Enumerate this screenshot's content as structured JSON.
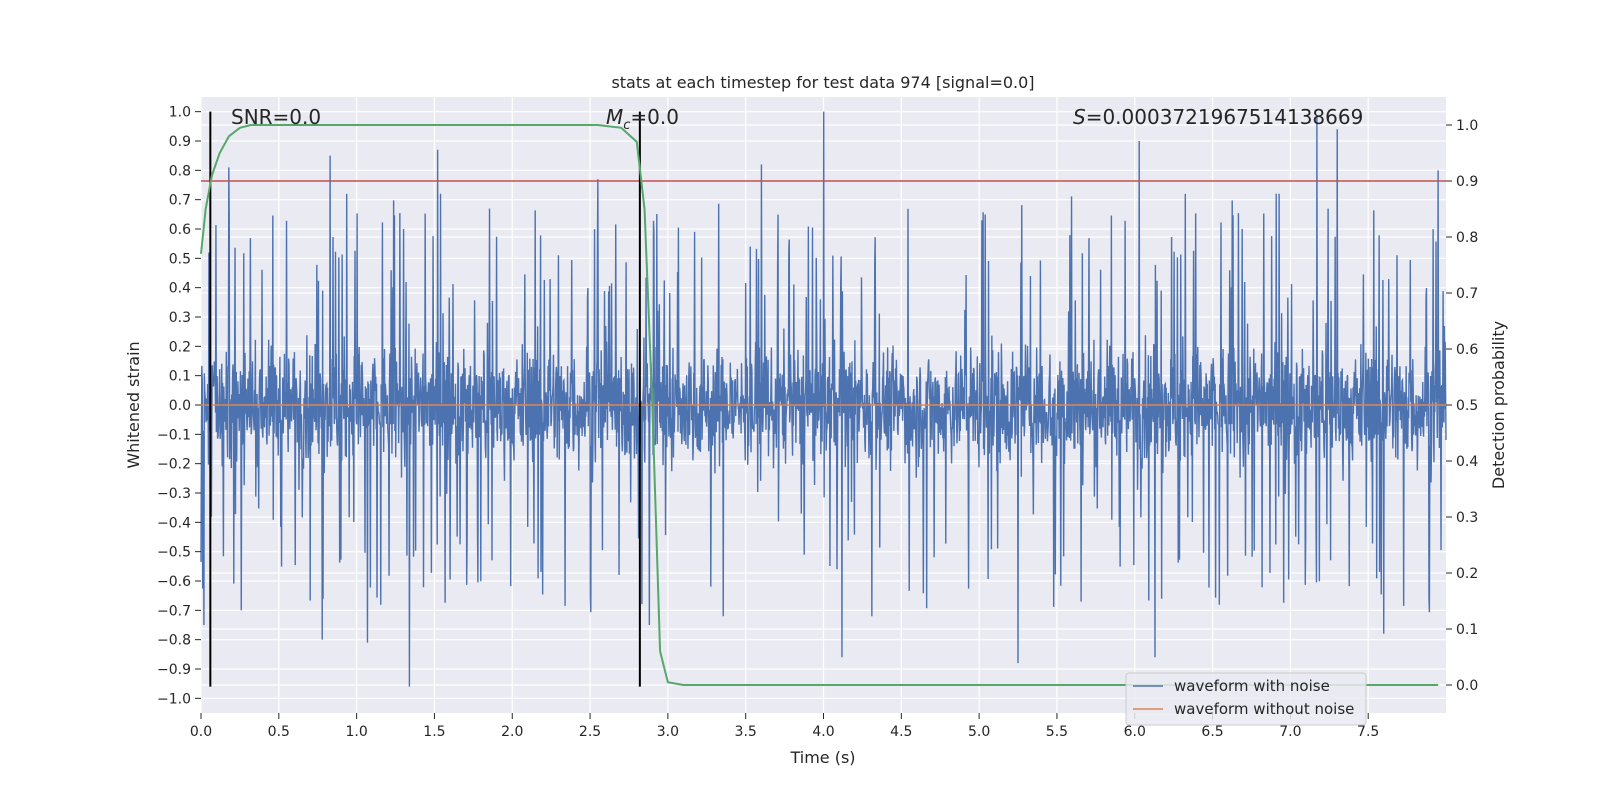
{
  "chart_data": {
    "type": "line",
    "title": "stats at each timestep for test data 974 [signal=0.0]",
    "xlabel": "Time (s)",
    "ylabel": "Whitened strain",
    "y2label": "Detection probability",
    "xlim": [
      0,
      8
    ],
    "ylim": [
      -1.05,
      1.05
    ],
    "y2lim": [
      -0.05,
      1.05
    ],
    "xticks": [
      0.0,
      0.5,
      1.0,
      1.5,
      2.0,
      2.5,
      3.0,
      3.5,
      4.0,
      4.5,
      5.0,
      5.5,
      6.0,
      6.5,
      7.0,
      7.5
    ],
    "xtick_labels": [
      "0.0",
      "0.5",
      "1.0",
      "1.5",
      "2.0",
      "2.5",
      "3.0",
      "3.5",
      "4.0",
      "4.5",
      "5.0",
      "5.5",
      "6.0",
      "6.5",
      "7.0",
      "7.5"
    ],
    "yticks": [
      -1.0,
      -0.9,
      -0.8,
      -0.7,
      -0.6,
      -0.5,
      -0.4,
      -0.3,
      -0.2,
      -0.1,
      0.0,
      0.1,
      0.2,
      0.3,
      0.4,
      0.5,
      0.6,
      0.7,
      0.8,
      0.9,
      1.0
    ],
    "ytick_labels": [
      "−1.0",
      "−0.9",
      "−0.8",
      "−0.7",
      "−0.6",
      "−0.5",
      "−0.4",
      "−0.3",
      "−0.2",
      "−0.1",
      "0.0",
      "0.1",
      "0.2",
      "0.3",
      "0.4",
      "0.5",
      "0.6",
      "0.7",
      "0.8",
      "0.9",
      "1.0"
    ],
    "y2ticks": [
      0.0,
      0.1,
      0.2,
      0.3,
      0.4,
      0.5,
      0.6,
      0.7,
      0.8,
      0.9,
      1.0
    ],
    "y2tick_labels": [
      "0.0",
      "0.1",
      "0.2",
      "0.3",
      "0.4",
      "0.5",
      "0.6",
      "0.7",
      "0.8",
      "0.9",
      "1.0"
    ],
    "series": [
      {
        "name": "waveform with noise",
        "color": "#4c72b0",
        "axis": "left",
        "description": "dense whitened-strain noise, roughly within ±0.25 with spikes to about ±1.0",
        "x_range": [
          0,
          8
        ],
        "peaks": [
          [
            0.05,
            0.52
          ],
          [
            0.18,
            0.81
          ],
          [
            0.83,
            0.85
          ],
          [
            1.52,
            0.87
          ],
          [
            2.55,
            0.77
          ],
          [
            3.6,
            0.82
          ],
          [
            4.0,
            1.0
          ],
          [
            6.03,
            0.9
          ],
          [
            7.17,
            0.98
          ],
          [
            7.3,
            0.94
          ],
          [
            7.95,
            0.8
          ]
        ],
        "troughs": [
          [
            0.02,
            -0.75
          ],
          [
            0.26,
            -0.7
          ],
          [
            0.78,
            -0.8
          ],
          [
            1.07,
            -0.81
          ],
          [
            1.34,
            -0.96
          ],
          [
            2.88,
            -0.75
          ],
          [
            4.12,
            -0.86
          ],
          [
            5.25,
            -0.88
          ],
          [
            6.13,
            -0.86
          ],
          [
            7.6,
            -0.78
          ]
        ]
      },
      {
        "name": "waveform without noise",
        "color": "#dd8452",
        "axis": "left",
        "x": [
          0,
          8
        ],
        "y": [
          0,
          0
        ]
      },
      {
        "name": "detection probability",
        "color": "#55a868",
        "axis": "right",
        "x": [
          0.0,
          0.03,
          0.07,
          0.12,
          0.18,
          0.25,
          0.32,
          0.4,
          0.6,
          1.0,
          2.0,
          2.55,
          2.7,
          2.8,
          2.85,
          2.9,
          2.95,
          3.0,
          3.1,
          3.5,
          5.0,
          7.0,
          7.95
        ],
        "y": [
          0.77,
          0.85,
          0.91,
          0.95,
          0.98,
          0.995,
          1.0,
          1.0,
          1.0,
          1.0,
          1.0,
          1.0,
          0.995,
          0.97,
          0.85,
          0.5,
          0.06,
          0.005,
          0.0,
          0.0,
          0.0,
          0.0,
          0.0
        ]
      }
    ],
    "threshold_line": {
      "axis": "right",
      "value": 0.9,
      "color": "#c44e52"
    },
    "vertical_markers": [
      {
        "x": 0.06,
        "ymin": -0.96,
        "ymax": 1.0,
        "color": "#000000"
      },
      {
        "x": 2.82,
        "ymin": -0.96,
        "ymax": 1.0,
        "color": "#000000"
      }
    ],
    "annotations": {
      "snr": "SNR=0.0",
      "mc_symbol": "M",
      "mc_sub": "c",
      "mc_value": "=0.0",
      "s_symbol": "S",
      "s_value": "=0.0003721967514138669"
    },
    "legend": {
      "location": "bottom-right",
      "entries": [
        {
          "label": "waveform with noise",
          "color": "#4c72b0"
        },
        {
          "label": "waveform without noise",
          "color": "#dd8452"
        }
      ]
    },
    "grid": true
  }
}
